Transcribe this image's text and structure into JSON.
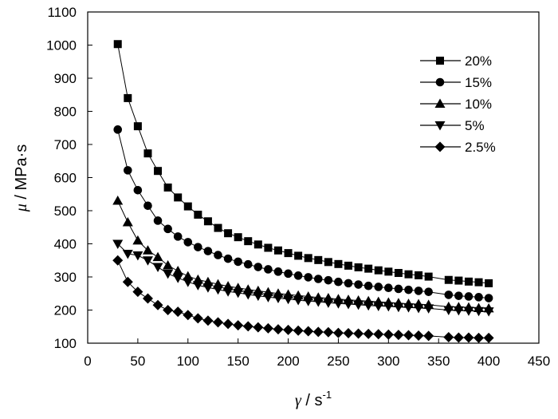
{
  "chart_data": {
    "type": "line",
    "xlabel_symbol": "γ",
    "xlabel_unit": " / s",
    "xlabel_exponent": "-1",
    "ylabel_symbol": "μ",
    "ylabel_unit": " / MPa·s",
    "xlim": [
      0,
      450
    ],
    "ylim": [
      100,
      1100
    ],
    "xticks": [
      0,
      50,
      100,
      150,
      200,
      250,
      300,
      350,
      400,
      450
    ],
    "yticks": [
      100,
      200,
      300,
      400,
      500,
      600,
      700,
      800,
      900,
      1000,
      1100
    ],
    "legend_position": "top-right",
    "grid": false,
    "series": [
      {
        "name": "20%",
        "marker": "square",
        "x": [
          30,
          40,
          50,
          60,
          70,
          80,
          90,
          100,
          110,
          120,
          130,
          140,
          150,
          160,
          170,
          180,
          190,
          200,
          210,
          220,
          230,
          240,
          250,
          260,
          270,
          280,
          290,
          300,
          310,
          320,
          330,
          340,
          360,
          370,
          380,
          390,
          400
        ],
        "values": [
          1003,
          840,
          755,
          673,
          620,
          570,
          540,
          513,
          488,
          468,
          448,
          432,
          420,
          408,
          398,
          388,
          380,
          372,
          364,
          357,
          351,
          345,
          339,
          334,
          329,
          325,
          320,
          316,
          312,
          308,
          305,
          301,
          291,
          289,
          286,
          284,
          281
        ]
      },
      {
        "name": "15%",
        "marker": "circle",
        "x": [
          30,
          40,
          50,
          60,
          70,
          80,
          90,
          100,
          110,
          120,
          130,
          140,
          150,
          160,
          170,
          180,
          190,
          200,
          210,
          220,
          230,
          240,
          250,
          260,
          270,
          280,
          290,
          300,
          310,
          320,
          330,
          340,
          360,
          370,
          380,
          390,
          400
        ],
        "values": [
          745,
          622,
          562,
          515,
          470,
          445,
          422,
          405,
          390,
          378,
          366,
          355,
          346,
          338,
          330,
          323,
          316,
          310,
          304,
          299,
          294,
          290,
          285,
          281,
          277,
          273,
          270,
          267,
          264,
          261,
          258,
          255,
          246,
          243,
          241,
          239,
          236
        ]
      },
      {
        "name": "10%",
        "marker": "triangle-up",
        "x": [
          30,
          40,
          50,
          60,
          70,
          80,
          90,
          100,
          110,
          120,
          130,
          140,
          150,
          160,
          170,
          180,
          190,
          200,
          210,
          220,
          230,
          240,
          250,
          260,
          270,
          280,
          290,
          300,
          310,
          320,
          330,
          340,
          360,
          370,
          380,
          390,
          400
        ],
        "values": [
          530,
          465,
          410,
          380,
          360,
          335,
          318,
          302,
          292,
          285,
          278,
          272,
          267,
          262,
          258,
          254,
          250,
          247,
          244,
          241,
          238,
          236,
          233,
          231,
          229,
          227,
          225,
          223,
          221,
          219,
          218,
          216,
          210,
          209,
          208,
          206,
          205
        ]
      },
      {
        "name": "5%",
        "marker": "triangle-down",
        "x": [
          30,
          40,
          50,
          60,
          70,
          80,
          90,
          100,
          110,
          120,
          130,
          140,
          150,
          160,
          170,
          180,
          190,
          200,
          210,
          220,
          230,
          240,
          250,
          260,
          270,
          280,
          290,
          300,
          310,
          320,
          330,
          340,
          360,
          370,
          380,
          390,
          400
        ],
        "values": [
          400,
          370,
          365,
          350,
          330,
          310,
          297,
          285,
          275,
          268,
          262,
          256,
          252,
          247,
          243,
          239,
          236,
          233,
          230,
          227,
          225,
          222,
          220,
          218,
          216,
          214,
          212,
          211,
          209,
          208,
          206,
          205,
          200,
          199,
          198,
          197,
          196
        ]
      },
      {
        "name": "2.5%",
        "marker": "diamond",
        "x": [
          30,
          40,
          50,
          60,
          70,
          80,
          90,
          100,
          110,
          120,
          130,
          140,
          150,
          160,
          170,
          180,
          190,
          200,
          210,
          220,
          230,
          240,
          250,
          260,
          270,
          280,
          290,
          300,
          310,
          320,
          330,
          340,
          360,
          370,
          380,
          390,
          400
        ],
        "values": [
          350,
          285,
          255,
          235,
          215,
          200,
          195,
          185,
          175,
          168,
          163,
          158,
          154,
          151,
          148,
          145,
          142,
          140,
          138,
          136,
          134,
          133,
          131,
          130,
          129,
          128,
          127,
          126,
          125,
          124,
          123,
          122,
          118,
          117,
          117,
          116,
          116
        ]
      }
    ]
  }
}
